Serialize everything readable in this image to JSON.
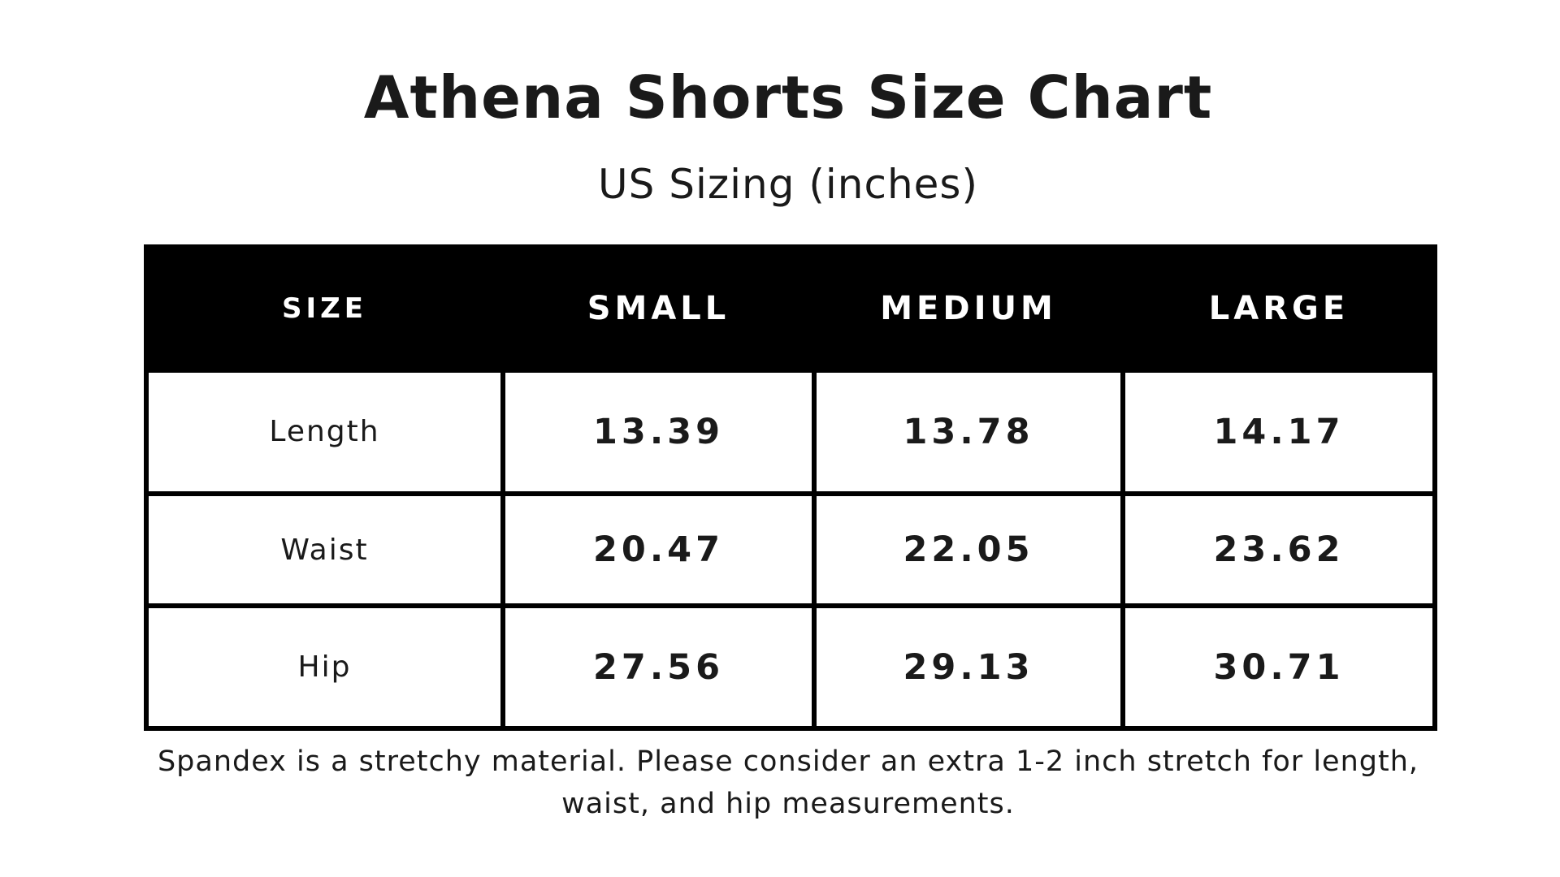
{
  "title": "Athena Shorts Size Chart",
  "subtitle": "US Sizing (inches)",
  "table": {
    "headers": [
      "SIZE",
      "SMALL",
      "MEDIUM",
      "LARGE"
    ],
    "rows": [
      {
        "label": "Length",
        "values": [
          "13.39",
          "13.78",
          "14.17"
        ]
      },
      {
        "label": "Waist",
        "values": [
          "20.47",
          "22.05",
          "23.62"
        ]
      },
      {
        "label": "Hip",
        "values": [
          "27.56",
          "29.13",
          "30.71"
        ]
      }
    ]
  },
  "note": "Spandex is a stretchy material. Please consider an extra 1-2 inch stretch for length, waist, and hip measurements.",
  "colors": {
    "header_background": "#000000",
    "header_text": "#ffffff",
    "text": "#1a1a1a",
    "background": "#ffffff"
  }
}
